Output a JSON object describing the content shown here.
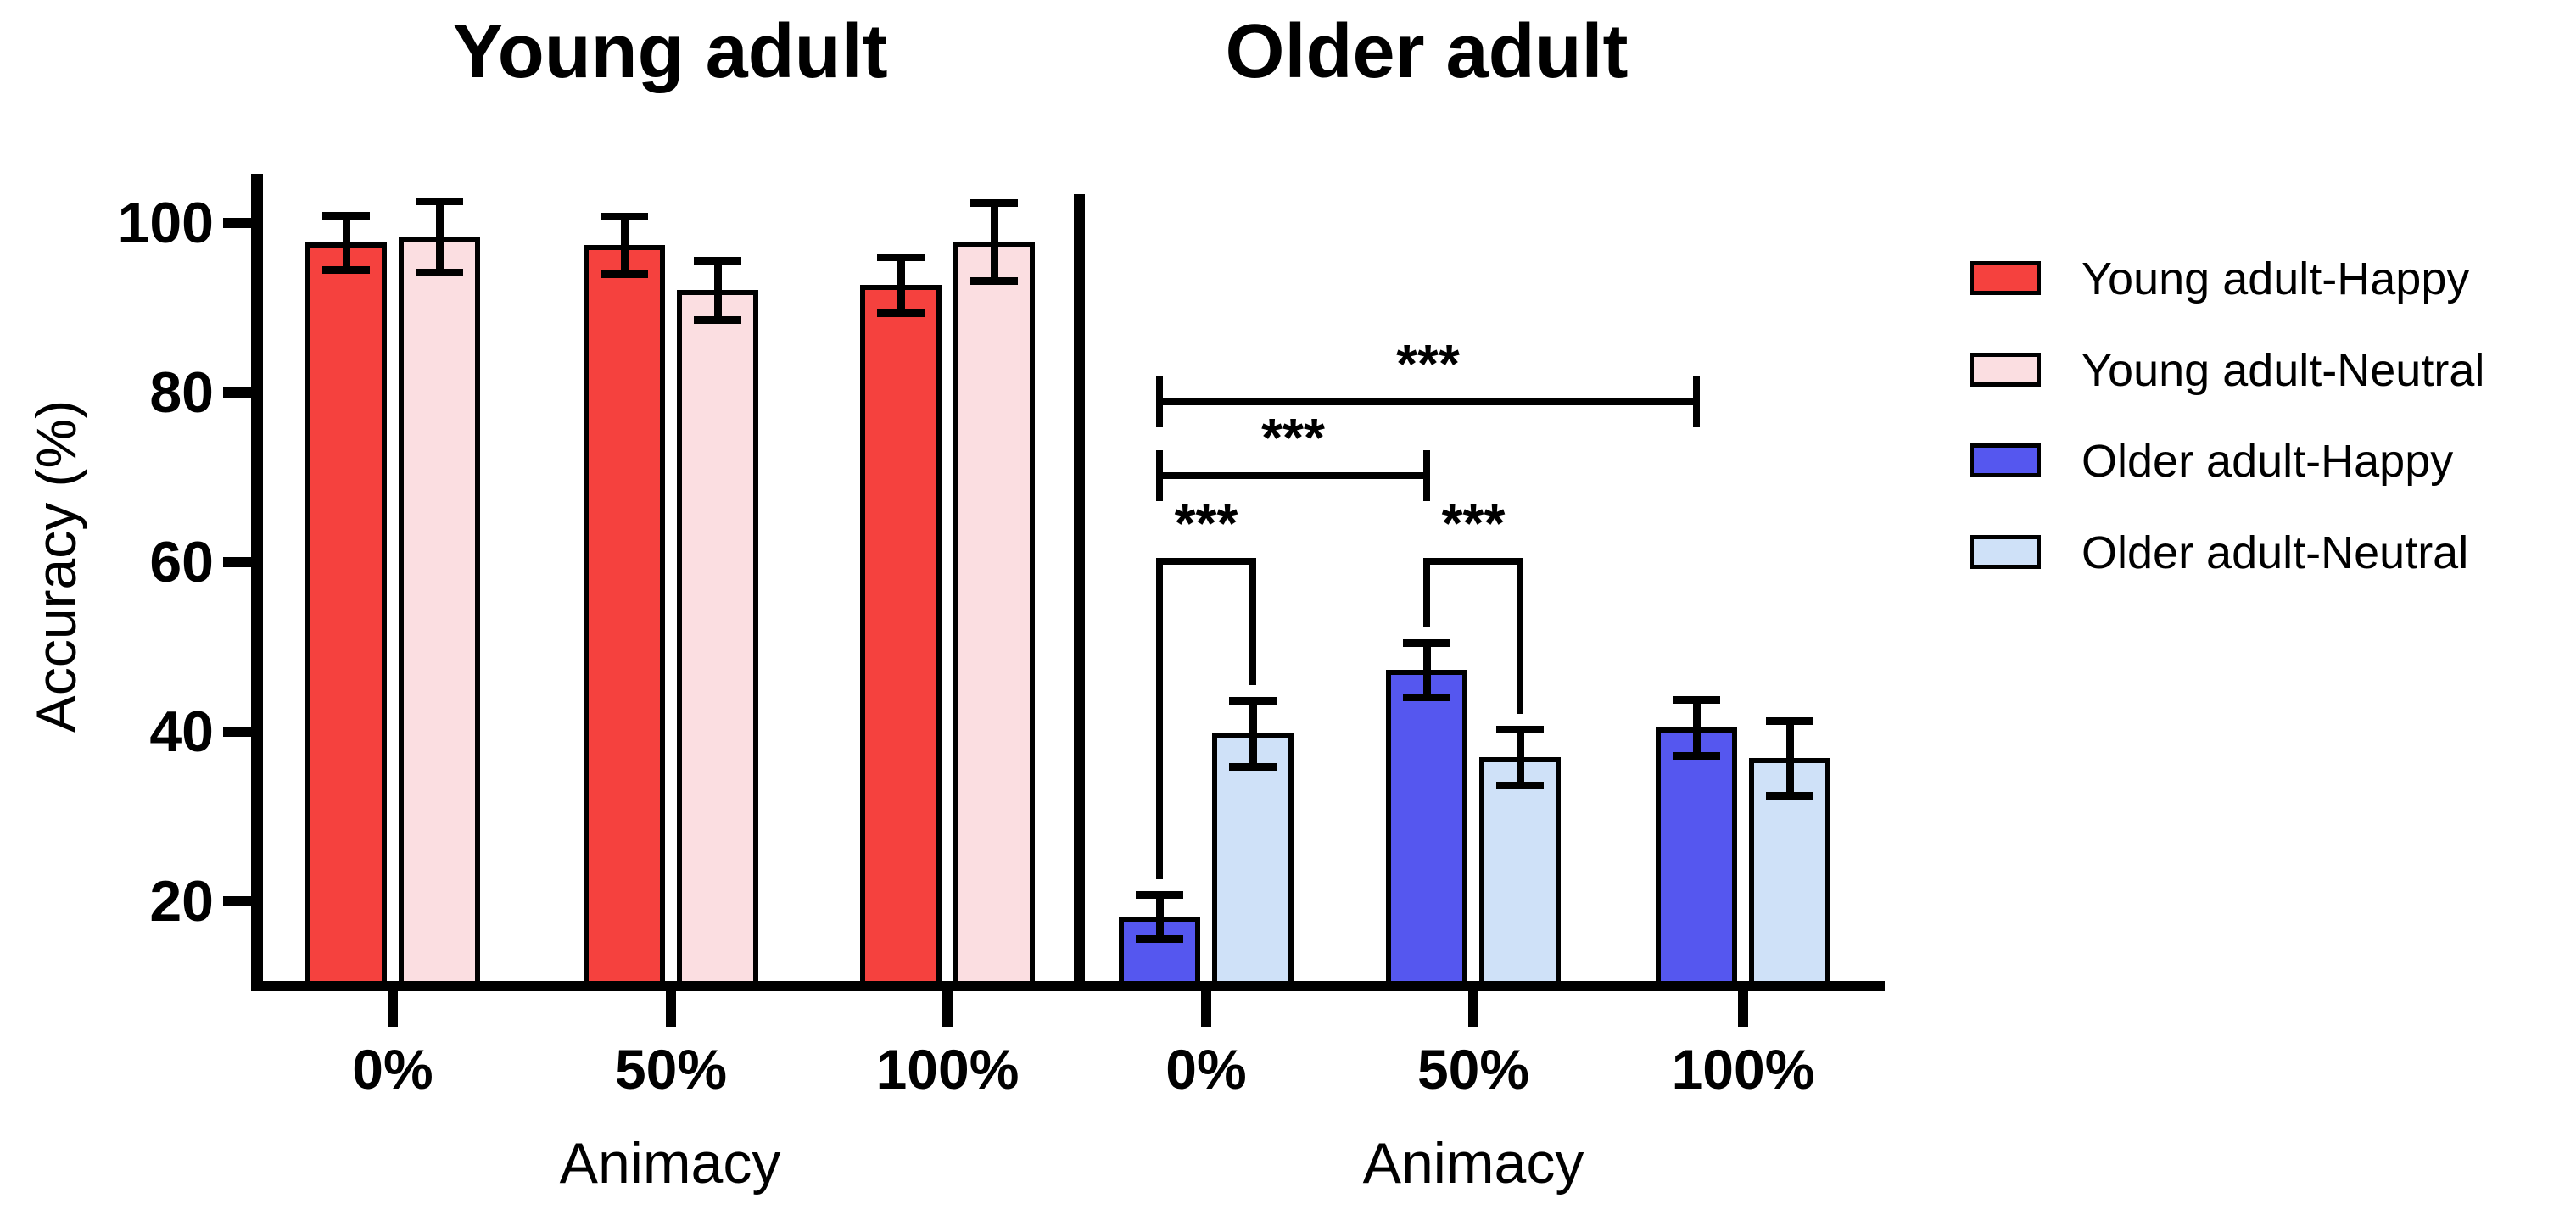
{
  "figure": {
    "ylabel": "Accuracy (%)",
    "panels": [
      {
        "title": "Young adult",
        "xlabel": "Animacy"
      },
      {
        "title": "Older adult",
        "xlabel": "Animacy"
      }
    ]
  },
  "legend": {
    "items": [
      {
        "label": "Young adult-Happy",
        "color": "#F5413E"
      },
      {
        "label": "Young adult-Neutral",
        "color": "#FBDEE1"
      },
      {
        "label": "Older adult-Happy",
        "color": "#5557EF"
      },
      {
        "label": "Older adult-Neutral",
        "color": "#CFE1F8"
      }
    ]
  },
  "chart_data": {
    "type": "bar",
    "title": "",
    "ylabel": "Accuracy (%)",
    "xlabel": "Animacy",
    "ylim": [
      10,
      105.5
    ],
    "yticks": [
      20,
      40,
      60,
      80,
      100
    ],
    "grid": false,
    "legend_position": "right",
    "error_bars": true,
    "panels": [
      {
        "title": "Young adult",
        "categories": [
          "0%",
          "50%",
          "100%"
        ],
        "series": [
          {
            "name": "Young adult-Happy",
            "color": "#F5413E",
            "values": [
              97.7,
              97.4,
              92.7
            ],
            "errors": [
              3.2,
              3.4,
              3.3
            ]
          },
          {
            "name": "Young adult-Neutral",
            "color": "#FBDEE1",
            "values": [
              98.4,
              92.1,
              97.8
            ],
            "errors": [
              4.2,
              3.5,
              4.6
            ]
          }
        ],
        "significance": []
      },
      {
        "title": "Older adult",
        "categories": [
          "0%",
          "50%",
          "100%"
        ],
        "series": [
          {
            "name": "Older adult-Happy",
            "color": "#5557EF",
            "values": [
              18.2,
              47.3,
              40.5
            ],
            "errors": [
              2.6,
              3.2,
              3.3
            ]
          },
          {
            "name": "Older adult-Neutral",
            "color": "#CFE1F8",
            "values": [
              39.8,
              37.0,
              36.9
            ],
            "errors": [
              3.9,
              3.3,
              4.4
            ]
          }
        ],
        "significance": [
          {
            "label": "***",
            "type": "pair",
            "category": "0%",
            "between": [
              "Older adult-Happy",
              "Older adult-Neutral"
            ]
          },
          {
            "label": "***",
            "type": "pair",
            "category": "50%",
            "between": [
              "Older adult-Happy",
              "Older adult-Neutral"
            ]
          },
          {
            "label": "***",
            "type": "range",
            "from": {
              "category": "0%",
              "series": "Older adult-Happy"
            },
            "to": {
              "category": "50%",
              "series": "Older adult-Happy"
            }
          },
          {
            "label": "***",
            "type": "range",
            "from": {
              "category": "0%",
              "series": "Older adult-Happy"
            },
            "to": {
              "category": "100%",
              "series": "Older adult-Happy"
            }
          }
        ]
      }
    ]
  }
}
